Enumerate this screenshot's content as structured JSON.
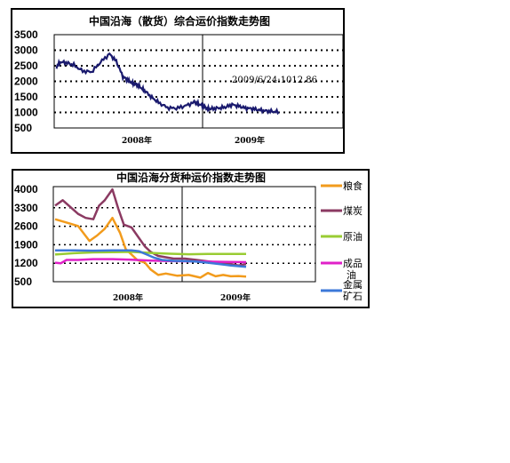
{
  "chart_data": [
    {
      "type": "line",
      "title": "中国沿海（散货）综合运价指数走势图",
      "y_ticks": [
        "3500",
        "3000",
        "2500",
        "2000",
        "1500",
        "1000",
        "500"
      ],
      "x_ticks": [
        "2008年",
        "2009年"
      ],
      "ylim": [
        500,
        3500
      ],
      "grid": "dotted horizontal",
      "annotation": "2009/6/24:1012.86",
      "colors": {
        "line": "#1a1a6e"
      },
      "series": [
        {
          "x": [
            0,
            0.02,
            0.05,
            0.08,
            0.12,
            0.16,
            0.2,
            0.24,
            0.27,
            0.3,
            0.32,
            0.34,
            0.36,
            0.38,
            0.4,
            0.43,
            0.46,
            0.5,
            0.54,
            0.58,
            0.62,
            0.64,
            0.66,
            0.68,
            0.7,
            0.73,
            0.76,
            0.79,
            0.82,
            0.85,
            0.88,
            0.91,
            0.94,
            0.97,
            1.0
          ],
          "values": [
            2450,
            2620,
            2590,
            2520,
            2330,
            2300,
            2620,
            2880,
            2650,
            2150,
            2050,
            1950,
            1900,
            1800,
            1680,
            1480,
            1320,
            1150,
            1130,
            1210,
            1330,
            1270,
            1210,
            1110,
            1120,
            1140,
            1170,
            1250,
            1200,
            1140,
            1120,
            1080,
            1050,
            1030,
            1012.86
          ]
        }
      ]
    },
    {
      "type": "line",
      "title": "中国沿海分货种运价指数走势图",
      "y_ticks": [
        "4000",
        "3300",
        "2600",
        "1900",
        "1200",
        "500"
      ],
      "x_ticks": [
        "2008年",
        "2009年"
      ],
      "ylim": [
        500,
        4000
      ],
      "grid": "dotted horizontal",
      "legend_position": "right",
      "series": [
        {
          "name": "粮食",
          "color": "#f29b1c",
          "x": [
            0,
            0.06,
            0.12,
            0.18,
            0.22,
            0.26,
            0.3,
            0.34,
            0.37,
            0.4,
            0.43,
            0.47,
            0.5,
            0.52,
            0.54,
            0.58,
            0.64,
            0.7,
            0.76,
            0.8,
            0.84,
            0.88,
            0.92,
            0.96,
            1.0
          ],
          "values": [
            2800,
            2680,
            2550,
            2000,
            2200,
            2450,
            2850,
            2300,
            1700,
            1500,
            1300,
            1200,
            950,
            850,
            750,
            800,
            720,
            750,
            650,
            820,
            700,
            750,
            700,
            710,
            690
          ]
        },
        {
          "name": "煤炭",
          "color": "#8b3a62",
          "x": [
            0,
            0.04,
            0.08,
            0.12,
            0.16,
            0.2,
            0.23,
            0.26,
            0.3,
            0.33,
            0.36,
            0.4,
            0.44,
            0.47,
            0.5,
            0.54,
            0.58,
            0.62,
            0.68,
            0.74,
            0.8,
            0.86,
            0.92,
            0.96,
            1.0
          ],
          "values": [
            3300,
            3500,
            3250,
            3000,
            2850,
            2800,
            3300,
            3500,
            3900,
            3200,
            2600,
            2500,
            2100,
            1800,
            1600,
            1450,
            1400,
            1350,
            1350,
            1300,
            1250,
            1200,
            1150,
            1100,
            1150
          ]
        },
        {
          "name": "原油",
          "color": "#99cc33",
          "x": [
            0,
            0.1,
            0.2,
            0.3,
            0.4,
            0.5,
            0.6,
            0.7,
            0.8,
            0.9,
            1.0
          ],
          "values": [
            1500,
            1550,
            1580,
            1590,
            1600,
            1560,
            1530,
            1510,
            1520,
            1520,
            1520
          ]
        },
        {
          "name": "成品油",
          "color": "#e020c8",
          "x": [
            0,
            0.03,
            0.06,
            0.12,
            0.2,
            0.3,
            0.4,
            0.5,
            0.6,
            0.7,
            0.8,
            0.9,
            1.0
          ],
          "values": [
            1200,
            1180,
            1300,
            1300,
            1330,
            1330,
            1310,
            1280,
            1260,
            1250,
            1240,
            1230,
            1220
          ]
        },
        {
          "name": "金属矿石",
          "color": "#3c78d8",
          "x": [
            0,
            0.1,
            0.2,
            0.3,
            0.4,
            0.44,
            0.48,
            0.52,
            0.56,
            0.62,
            0.68,
            0.74,
            0.8,
            0.86,
            0.92,
            1.0
          ],
          "values": [
            1650,
            1650,
            1640,
            1650,
            1650,
            1620,
            1500,
            1380,
            1300,
            1270,
            1260,
            1240,
            1200,
            1150,
            1100,
            1050
          ]
        }
      ]
    }
  ]
}
